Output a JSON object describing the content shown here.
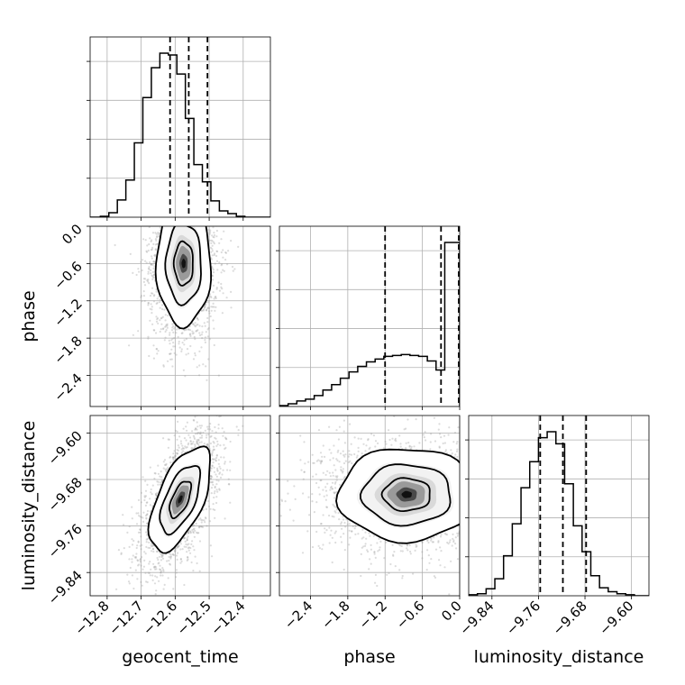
{
  "chart_data": {
    "type": "corner",
    "parameters": [
      {
        "name": "geocent_time",
        "range": [
          -12.85,
          -12.32
        ],
        "ticks": [
          -12.8,
          -12.7,
          -12.6,
          -12.5,
          -12.4
        ],
        "tick_labels": [
          "−12.8",
          "−12.7",
          "−12.6",
          "−12.5",
          "−12.4"
        ],
        "quantiles": [
          -12.615,
          -12.56,
          -12.505
        ]
      },
      {
        "name": "phase",
        "range": [
          -2.9,
          0.0
        ],
        "ticks": [
          -2.4,
          -1.8,
          -1.2,
          -0.6,
          0.0
        ],
        "tick_labels": [
          "−2.4",
          "−1.8",
          "−1.2",
          "−0.6",
          "0.0"
        ],
        "quantiles": [
          -1.2,
          -0.3,
          0.0
        ]
      },
      {
        "name": "luminosity_distance",
        "range": [
          -9.88,
          -9.57
        ],
        "ticks": [
          -9.84,
          -9.76,
          -9.68,
          -9.6
        ],
        "tick_labels": [
          "−9.84",
          "−9.76",
          "−9.68",
          "−9.60"
        ],
        "quantiles": [
          -9.757,
          -9.718,
          -9.678
        ]
      }
    ],
    "histograms": [
      {
        "param": "geocent_time",
        "bin_edges": [
          -12.85,
          -12.82,
          -12.795,
          -12.77,
          -12.745,
          -12.72,
          -12.695,
          -12.67,
          -12.645,
          -12.62,
          -12.595,
          -12.57,
          -12.545,
          -12.52,
          -12.495,
          -12.47,
          -12.445,
          -12.42,
          -12.395,
          -12.37,
          -12.345,
          -12.32
        ],
        "counts": [
          0,
          1,
          5,
          19,
          41,
          82,
          132,
          165,
          181,
          179,
          158,
          109,
          58,
          39,
          18,
          7,
          4,
          1,
          0,
          0,
          0
        ]
      },
      {
        "param": "phase",
        "bin_edges": [
          -2.9,
          -2.76,
          -2.62,
          -2.48,
          -2.34,
          -2.2,
          -2.06,
          -1.92,
          -1.78,
          -1.64,
          -1.5,
          -1.36,
          -1.22,
          -1.08,
          -0.94,
          -0.8,
          -0.66,
          -0.52,
          -0.38,
          -0.24,
          -0.1,
          0.0
        ],
        "counts": [
          1,
          3,
          6,
          8,
          12,
          18,
          24,
          31,
          38,
          44,
          49,
          52,
          55,
          56,
          57,
          56,
          55,
          50,
          40,
          180,
          180
        ]
      },
      {
        "param": "luminosity_distance",
        "bin_edges": [
          -9.88,
          -9.865,
          -9.85,
          -9.835,
          -9.82,
          -9.805,
          -9.79,
          -9.775,
          -9.76,
          -9.745,
          -9.73,
          -9.715,
          -9.7,
          -9.685,
          -9.67,
          -9.655,
          -9.64,
          -9.625,
          -9.61,
          -9.595,
          -9.58,
          -9.57
        ],
        "counts": [
          1,
          2,
          7,
          17,
          40,
          72,
          108,
          134,
          158,
          164,
          152,
          112,
          70,
          44,
          20,
          8,
          4,
          2,
          1,
          0,
          0
        ]
      }
    ],
    "pairs": [
      {
        "x": "geocent_time",
        "y": "phase",
        "mean": [
          -12.575,
          -0.6
        ],
        "sd": [
          0.04,
          0.5
        ],
        "rho": 0.0
      },
      {
        "x": "geocent_time",
        "y": "luminosity_distance",
        "mean": [
          -12.585,
          -9.714
        ],
        "sd": [
          0.045,
          0.045
        ],
        "rho": 0.6
      },
      {
        "x": "phase",
        "y": "luminosity_distance",
        "mean": [
          -0.85,
          -9.706
        ],
        "sd": [
          0.55,
          0.04
        ],
        "rho": 0.0
      }
    ],
    "grid": true,
    "xlabel": [
      "geocent_time",
      "phase",
      "luminosity_distance"
    ],
    "ylabel": [
      "",
      "phase",
      "luminosity_distance"
    ]
  }
}
